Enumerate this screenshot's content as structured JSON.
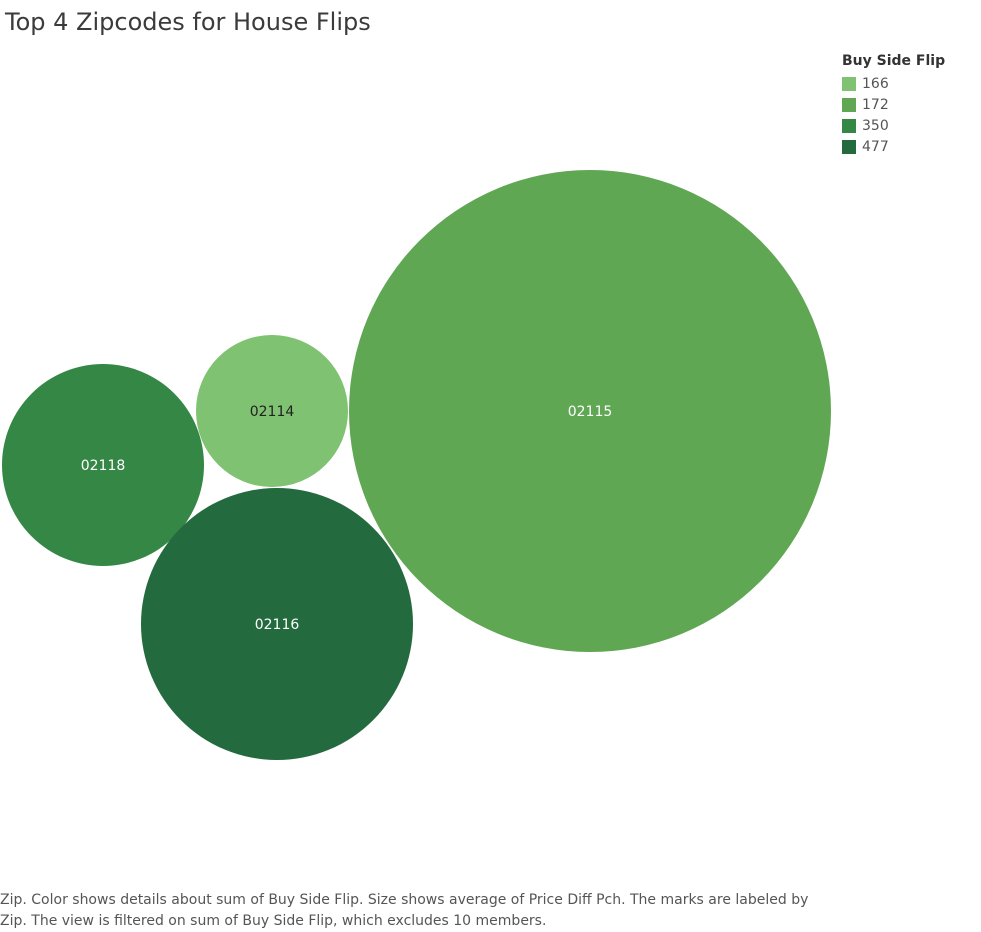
{
  "title": "Top 4 Zipcodes for House Flips",
  "legend": {
    "title": "Buy Side Flip",
    "items": [
      {
        "label": "166",
        "color": "#7fc271"
      },
      {
        "label": "172",
        "color": "#60a754"
      },
      {
        "label": "350",
        "color": "#358746"
      },
      {
        "label": "477",
        "color": "#236a3e"
      }
    ]
  },
  "caption": {
    "line1": "Zip.  Color shows details about sum of Buy Side Flip.  Size shows average of Price Diff Pch.  The marks are labeled by",
    "line2": "Zip. The view is filtered on sum of Buy Side Flip, which excludes 10 members."
  },
  "chart_data": {
    "type": "bubble",
    "title": "Top 4 Zipcodes for House Flips",
    "color_field": "Buy Side Flip",
    "size_field": "Price Diff Pch",
    "bubbles": [
      {
        "zip": "02115",
        "buy_side_flip": 172,
        "color": "#60a754",
        "label_color": "#ffffff"
      },
      {
        "zip": "02114",
        "buy_side_flip": 166,
        "color": "#7fc271",
        "label_color": "#222222"
      },
      {
        "zip": "02118",
        "buy_side_flip": 350,
        "color": "#358746",
        "label_color": "#ffffff"
      },
      {
        "zip": "02116",
        "buy_side_flip": 477,
        "color": "#236a3e",
        "label_color": "#ffffff"
      }
    ]
  }
}
